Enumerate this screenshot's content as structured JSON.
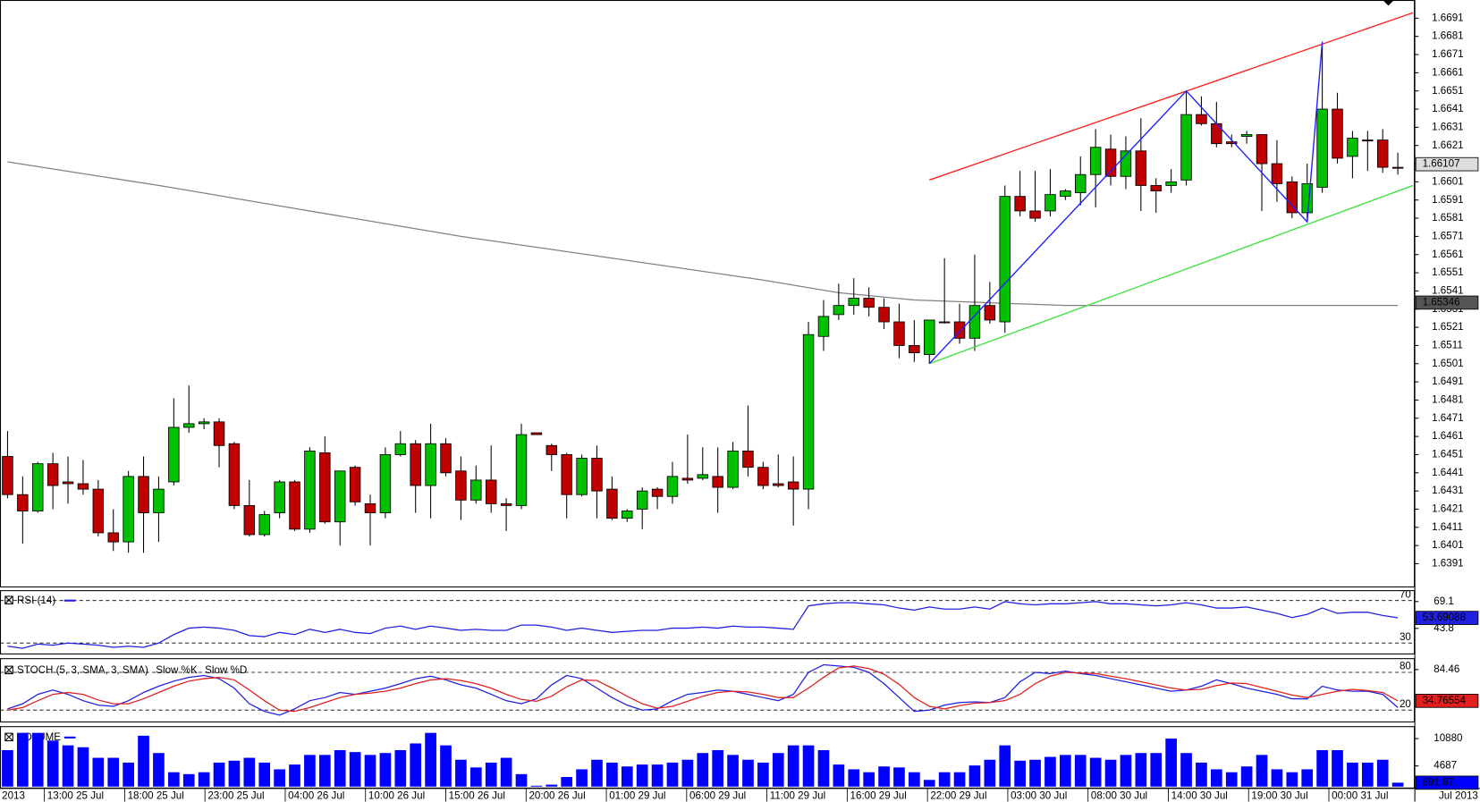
{
  "chart_data": {
    "type": "candlestick",
    "up_color": "#00c000",
    "down_color": "#c00000",
    "ylim": [
      1.6378,
      1.6701
    ],
    "yticks": [
      1.6691,
      1.6681,
      1.6671,
      1.6661,
      1.6651,
      1.6641,
      1.6631,
      1.6621,
      1.6611,
      1.6601,
      1.6591,
      1.6581,
      1.6571,
      1.6561,
      1.6551,
      1.6541,
      1.6531,
      1.6521,
      1.6511,
      1.6501,
      1.6491,
      1.6481,
      1.6471,
      1.6461,
      1.6451,
      1.6441,
      1.6431,
      1.6421,
      1.6411,
      1.6401,
      1.6391
    ],
    "open": [
      1.645,
      1.6429,
      1.642,
      1.6446,
      1.6436,
      1.6435,
      1.6432,
      1.6408,
      1.6403,
      1.6439,
      1.6419,
      1.6436,
      1.6466,
      1.6468,
      1.6469,
      1.6457,
      1.6423,
      1.6407,
      1.6419,
      1.6436,
      1.641,
      1.6452,
      1.6414,
      1.6444,
      1.6424,
      1.6419,
      1.6451,
      1.6457,
      1.6434,
      1.6457,
      1.6442,
      1.6426,
      1.6437,
      1.6424,
      1.6423,
      1.6463,
      1.6456,
      1.6451,
      1.6429,
      1.6449,
      1.6432,
      1.6416,
      1.6421,
      1.6432,
      1.6428,
      1.6438,
      1.6438,
      1.6439,
      1.6433,
      1.6453,
      1.6444,
      1.6435,
      1.6436,
      1.6432,
      1.6516,
      1.6528,
      1.6533,
      1.6537,
      1.6532,
      1.6524,
      1.6511,
      1.6506,
      1.6524,
      1.6524,
      1.6515,
      1.6533,
      1.6524,
      1.6593,
      1.6585,
      1.6585,
      1.6593,
      1.6595,
      1.6605,
      1.6619,
      1.6604,
      1.6618,
      1.6599,
      1.6599,
      1.6602,
      1.6638,
      1.6633,
      1.6623,
      1.6626,
      1.6627,
      1.6611,
      1.6601,
      1.6584,
      1.6598,
      1.6641,
      1.6615,
      1.6624,
      1.6624,
      1.6609
    ],
    "high": [
      1.6464,
      1.6439,
      1.6447,
      1.6452,
      1.645,
      1.6448,
      1.6437,
      1.6421,
      1.6442,
      1.645,
      1.6439,
      1.6482,
      1.6489,
      1.6471,
      1.6471,
      1.6458,
      1.6437,
      1.642,
      1.6437,
      1.6437,
      1.6455,
      1.6461,
      1.6442,
      1.6445,
      1.6429,
      1.6455,
      1.6464,
      1.6459,
      1.6468,
      1.646,
      1.645,
      1.6445,
      1.6456,
      1.6427,
      1.6468,
      1.6463,
      1.6457,
      1.6452,
      1.6451,
      1.6456,
      1.6439,
      1.6421,
      1.6433,
      1.6433,
      1.6447,
      1.6462,
      1.6455,
      1.6455,
      1.6458,
      1.6478,
      1.6447,
      1.6451,
      1.645,
      1.6524,
      1.6536,
      1.6545,
      1.6548,
      1.6543,
      1.6537,
      1.6534,
      1.6525,
      1.6525,
      1.6559,
      1.6534,
      1.6561,
      1.6546,
      1.6599,
      1.6607,
      1.6607,
      1.6608,
      1.6597,
      1.6615,
      1.663,
      1.6627,
      1.6626,
      1.6636,
      1.6603,
      1.6608,
      1.6651,
      1.6648,
      1.6645,
      1.6627,
      1.6629,
      1.6627,
      1.6624,
      1.6604,
      1.6611,
      1.6678,
      1.665,
      1.6629,
      1.6629,
      1.663,
      1.6617
    ],
    "low": [
      1.6427,
      1.6402,
      1.6419,
      1.6421,
      1.6424,
      1.6429,
      1.6406,
      1.6398,
      1.6397,
      1.6397,
      1.6403,
      1.6434,
      1.6463,
      1.6465,
      1.6444,
      1.6421,
      1.6406,
      1.6406,
      1.6416,
      1.6409,
      1.6408,
      1.6413,
      1.6401,
      1.6423,
      1.6401,
      1.6416,
      1.645,
      1.6419,
      1.6416,
      1.6439,
      1.6415,
      1.6424,
      1.6419,
      1.6409,
      1.6421,
      1.6462,
      1.6442,
      1.6416,
      1.6428,
      1.6416,
      1.6415,
      1.6414,
      1.641,
      1.6421,
      1.6424,
      1.6435,
      1.6437,
      1.6419,
      1.6432,
      1.6439,
      1.6432,
      1.6433,
      1.6412,
      1.6421,
      1.6508,
      1.6525,
      1.6528,
      1.6527,
      1.652,
      1.6504,
      1.6502,
      1.6501,
      1.6523,
      1.6512,
      1.6508,
      1.6523,
      1.6518,
      1.6582,
      1.6579,
      1.6582,
      1.6591,
      1.6588,
      1.6587,
      1.6599,
      1.6597,
      1.6585,
      1.6584,
      1.6595,
      1.6599,
      1.6632,
      1.662,
      1.662,
      1.6622,
      1.6585,
      1.659,
      1.6581,
      1.6579,
      1.6595,
      1.6611,
      1.6603,
      1.6607,
      1.6606,
      1.6605
    ],
    "close": [
      1.6429,
      1.642,
      1.6446,
      1.6434,
      1.6435,
      1.6432,
      1.6408,
      1.6403,
      1.6439,
      1.6419,
      1.6432,
      1.6466,
      1.6468,
      1.6469,
      1.6456,
      1.6423,
      1.6407,
      1.6418,
      1.6436,
      1.641,
      1.6453,
      1.6414,
      1.6442,
      1.6425,
      1.6419,
      1.6451,
      1.6457,
      1.6434,
      1.6457,
      1.6441,
      1.6426,
      1.6437,
      1.6424,
      1.6423,
      1.6462,
      1.6462,
      1.6451,
      1.6429,
      1.6449,
      1.6431,
      1.6416,
      1.642,
      1.6431,
      1.6428,
      1.6439,
      1.6437,
      1.644,
      1.6433,
      1.6453,
      1.6444,
      1.6434,
      1.6434,
      1.6432,
      1.6517,
      1.6527,
      1.6533,
      1.6537,
      1.6532,
      1.6524,
      1.6511,
      1.6507,
      1.6525,
      1.6524,
      1.6515,
      1.6533,
      1.6525,
      1.6593,
      1.6585,
      1.6581,
      1.6594,
      1.6596,
      1.6605,
      1.662,
      1.6604,
      1.6618,
      1.6599,
      1.6596,
      1.6601,
      1.6638,
      1.6633,
      1.6622,
      1.6622,
      1.6627,
      1.6611,
      1.66,
      1.6584,
      1.66,
      1.6641,
      1.6614,
      1.6625,
      1.6624,
      1.6609,
      1.6609
    ],
    "ma": {
      "color": "#808080",
      "x": [
        0,
        10,
        20,
        30,
        40,
        50,
        55,
        60,
        70,
        80,
        92
      ],
      "values": [
        1.6612,
        1.6599,
        1.6585,
        1.6571,
        1.6559,
        1.6547,
        1.654,
        1.6536,
        1.6533,
        1.6533,
        1.6533
      ]
    },
    "trendlines": [
      {
        "color": "#ff2020",
        "x": [
          61,
          93
        ],
        "values": [
          1.6602,
          1.6694
        ]
      },
      {
        "color": "#40e040",
        "x": [
          61,
          93
        ],
        "values": [
          1.6501,
          1.6599
        ]
      },
      {
        "color": "#2020ff",
        "x": [
          61,
          78,
          86,
          87
        ],
        "values": [
          1.6501,
          1.6651,
          1.6579,
          1.6678
        ]
      }
    ],
    "last_price": 1.66107,
    "ma_last": 1.65346,
    "year_start": "2013",
    "year_end": "Jul 2013",
    "x_labels": [
      "13:00 25 Jul",
      "18:00 25 Jul",
      "23:00 25 Jul",
      "04:00 26 Jul",
      "10:00 26 Jul",
      "15:00 26 Jul",
      "20:00 26 Jul",
      "01:00 29 Jul",
      "06:00 29 Jul",
      "11:00 29 Jul",
      "16:00 29 Jul",
      "22:00 29 Jul",
      "03:00 30 Jul",
      "08:00 30 Jul",
      "14:00 30 Jul",
      "19:00 30 Jul",
      "00:00 31 Jul"
    ],
    "indicators": {
      "rsi": {
        "title": "RSI (14)",
        "color": "#2020e0",
        "ylim": [
          19.3,
          79.8
        ],
        "levels": [
          70,
          30
        ],
        "yticks": [
          69.1,
          43.8
        ],
        "last": 53.69088,
        "values": [
          27,
          25,
          29,
          28,
          30,
          29,
          28,
          26,
          27,
          26,
          30,
          38,
          44,
          45,
          44,
          42,
          37,
          36,
          40,
          38,
          43,
          40,
          43,
          40,
          39,
          44,
          46,
          43,
          46,
          44,
          42,
          43,
          42,
          42,
          47,
          47,
          45,
          42,
          44,
          42,
          40,
          41,
          42,
          42,
          44,
          44,
          45,
          44,
          46,
          45,
          45,
          44,
          43,
          65,
          67,
          68,
          68,
          67,
          66,
          63,
          61,
          64,
          62,
          62,
          64,
          62,
          69,
          67,
          66,
          67,
          67,
          68,
          69,
          67,
          67,
          66,
          65,
          66,
          68,
          66,
          63,
          63,
          64,
          61,
          58,
          54,
          57,
          63,
          58,
          59,
          59,
          56,
          53.69088
        ]
      },
      "stoch": {
        "title": "STOCH (5, 3, SMA, 3, SMA)",
        "ylim": [
          0.5,
          102.5
        ],
        "levels": [
          80,
          20
        ],
        "yticks": [
          84.46
        ],
        "last": 34.76554,
        "series": [
          {
            "name": "Slow %K",
            "color": "#2020e0",
            "values": [
              22,
              30,
              45,
              52,
              45,
              35,
              28,
              26,
              35,
              48,
              58,
              66,
              72,
              75,
              70,
              55,
              30,
              18,
              12,
              22,
              35,
              40,
              48,
              45,
              50,
              55,
              62,
              70,
              74,
              68,
              60,
              55,
              45,
              35,
              30,
              38,
              60,
              75,
              70,
              55,
              40,
              28,
              20,
              22,
              35,
              45,
              48,
              52,
              50,
              45,
              40,
              35,
              45,
              80,
              92,
              90,
              88,
              80,
              62,
              40,
              18,
              20,
              28,
              32,
              33,
              32,
              40,
              65,
              80,
              78,
              82,
              78,
              75,
              70,
              65,
              60,
              55,
              50,
              52,
              58,
              68,
              62,
              55,
              50,
              45,
              38,
              38,
              58,
              52,
              50,
              50,
              45,
              24
            ]
          },
          {
            "name": "Slow %D",
            "color": "#e02020",
            "values": [
              20,
              24,
              35,
              45,
              48,
              45,
              36,
              30,
              30,
              38,
              48,
              58,
              66,
              70,
              72,
              68,
              52,
              35,
              20,
              18,
              24,
              32,
              40,
              45,
              47,
              50,
              55,
              62,
              68,
              70,
              67,
              62,
              55,
              45,
              37,
              34,
              42,
              57,
              68,
              67,
              55,
              42,
              30,
              23,
              26,
              34,
              42,
              48,
              50,
              49,
              45,
              40,
              40,
              55,
              72,
              87,
              90,
              86,
              77,
              61,
              40,
              26,
              22,
              27,
              31,
              32,
              35,
              45,
              62,
              74,
              80,
              79,
              78,
              74,
              70,
              65,
              60,
              55,
              52,
              53,
              59,
              63,
              62,
              56,
              50,
              44,
              40,
              45,
              50,
              53,
              51,
              48,
              34.76554
            ]
          }
        ]
      },
      "volume": {
        "title": "VOLUME",
        "color": "#0000ff",
        "ylim": [
          0,
          13700
        ],
        "yticks": [
          10880,
          4687
        ],
        "last": 891.87,
        "values": [
          8270,
          12180,
          12180,
          10440,
          9350,
          8920,
          6530,
          6530,
          5440,
          11530,
          7610,
          3260,
          2830,
          3260,
          5440,
          5870,
          6530,
          5440,
          3920,
          5000,
          7180,
          7180,
          8270,
          7830,
          7180,
          7610,
          8270,
          9790,
          12180,
          9350,
          6090,
          4350,
          5440,
          6530,
          2830,
          200,
          440,
          2180,
          3920,
          6090,
          5440,
          4570,
          5000,
          5000,
          5440,
          6090,
          7610,
          8270,
          7180,
          6090,
          5440,
          7610,
          9350,
          9350,
          8270,
          5000,
          3920,
          3260,
          4570,
          4350,
          3260,
          1520,
          3260,
          3260,
          4790,
          6090,
          9350,
          5870,
          6090,
          6740,
          7180,
          7180,
          6530,
          6090,
          7180,
          7610,
          7610,
          10880,
          7610,
          5440,
          3920,
          3260,
          4570,
          7180,
          3920,
          3260,
          3920,
          8270,
          8270,
          5440,
          5440,
          6090,
          891.87
        ]
      }
    }
  }
}
